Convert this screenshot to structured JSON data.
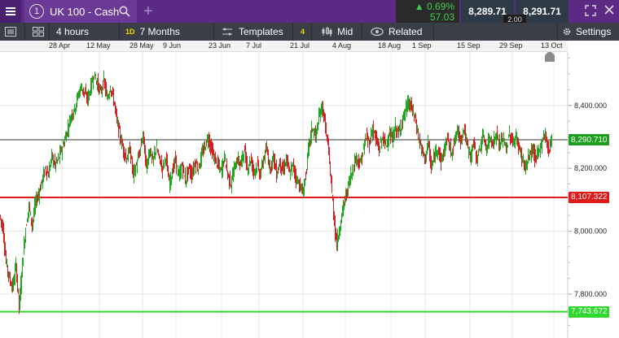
{
  "tab": {
    "number": "1",
    "title": "UK 100 - Cash"
  },
  "quote": {
    "change_pct": "0.69%",
    "change_abs": "57.03",
    "sell": "8,289.71",
    "buy": "8,291.71",
    "spread": "2.00",
    "up_color": "#3fd04a"
  },
  "toolbar": {
    "interval": "4 hours",
    "range_badge": "1D",
    "range": "7 Months",
    "templates": "Templates",
    "indicators_badge": "4",
    "price_type": "Mid",
    "related": "Related",
    "settings": "Settings"
  },
  "chart_data": {
    "type": "candlestick",
    "x_ticks": [
      "28 Apr",
      "12 May",
      "28 May",
      "9 Jun",
      "23 Jun",
      "7 Jul",
      "21 Jul",
      "4 Aug",
      "18 Aug",
      "1 Sep",
      "15 Sep",
      "29 Sep",
      "13 Oct"
    ],
    "y_ticks": [
      7800,
      8000,
      8200,
      8400
    ],
    "y_tick_labels": [
      "7,800.000",
      "8,000.000",
      "8,200.000",
      "8,400.000"
    ],
    "ylim": [
      7660,
      8570
    ],
    "up_color": "#1fa81f",
    "down_color": "#d42020",
    "path": [
      [
        0,
        8050
      ],
      [
        4,
        8010
      ],
      [
        8,
        7900
      ],
      [
        12,
        7850
      ],
      [
        16,
        7820
      ],
      [
        20,
        7890
      ],
      [
        24,
        7760
      ],
      [
        28,
        7900
      ],
      [
        32,
        8010
      ],
      [
        36,
        8080
      ],
      [
        40,
        8020
      ],
      [
        44,
        8090
      ],
      [
        48,
        8120
      ],
      [
        52,
        8160
      ],
      [
        56,
        8200
      ],
      [
        60,
        8180
      ],
      [
        64,
        8240
      ],
      [
        68,
        8210
      ],
      [
        72,
        8230
      ],
      [
        76,
        8260
      ],
      [
        80,
        8290
      ],
      [
        84,
        8330
      ],
      [
        88,
        8370
      ],
      [
        92,
        8390
      ],
      [
        96,
        8430
      ],
      [
        100,
        8460
      ],
      [
        104,
        8440
      ],
      [
        108,
        8420
      ],
      [
        112,
        8460
      ],
      [
        116,
        8500
      ],
      [
        120,
        8470
      ],
      [
        124,
        8440
      ],
      [
        128,
        8480
      ],
      [
        132,
        8420
      ],
      [
        136,
        8460
      ],
      [
        140,
        8420
      ],
      [
        144,
        8350
      ],
      [
        148,
        8300
      ],
      [
        152,
        8260
      ],
      [
        156,
        8230
      ],
      [
        160,
        8260
      ],
      [
        164,
        8180
      ],
      [
        168,
        8210
      ],
      [
        172,
        8250
      ],
      [
        176,
        8310
      ],
      [
        180,
        8200
      ],
      [
        184,
        8260
      ],
      [
        188,
        8220
      ],
      [
        192,
        8270
      ],
      [
        196,
        8230
      ],
      [
        200,
        8200
      ],
      [
        204,
        8240
      ],
      [
        208,
        8150
      ],
      [
        212,
        8190
      ],
      [
        216,
        8230
      ],
      [
        220,
        8170
      ],
      [
        224,
        8210
      ],
      [
        228,
        8160
      ],
      [
        232,
        8200
      ],
      [
        236,
        8180
      ],
      [
        240,
        8220
      ],
      [
        244,
        8200
      ],
      [
        248,
        8240
      ],
      [
        252,
        8270
      ],
      [
        256,
        8300
      ],
      [
        260,
        8260
      ],
      [
        264,
        8230
      ],
      [
        268,
        8210
      ],
      [
        272,
        8190
      ],
      [
        276,
        8240
      ],
      [
        280,
        8180
      ],
      [
        284,
        8150
      ],
      [
        288,
        8200
      ],
      [
        292,
        8230
      ],
      [
        296,
        8210
      ],
      [
        300,
        8260
      ],
      [
        304,
        8200
      ],
      [
        308,
        8230
      ],
      [
        312,
        8190
      ],
      [
        316,
        8210
      ],
      [
        320,
        8180
      ],
      [
        324,
        8230
      ],
      [
        328,
        8260
      ],
      [
        332,
        8200
      ],
      [
        336,
        8240
      ],
      [
        340,
        8180
      ],
      [
        344,
        8220
      ],
      [
        348,
        8190
      ],
      [
        352,
        8230
      ],
      [
        356,
        8180
      ],
      [
        360,
        8210
      ],
      [
        364,
        8170
      ],
      [
        368,
        8150
      ],
      [
        372,
        8120
      ],
      [
        376,
        8180
      ],
      [
        380,
        8280
      ],
      [
        384,
        8330
      ],
      [
        388,
        8300
      ],
      [
        392,
        8360
      ],
      [
        396,
        8400
      ],
      [
        400,
        8330
      ],
      [
        404,
        8250
      ],
      [
        408,
        8120
      ],
      [
        412,
        8000
      ],
      [
        414,
        7960
      ],
      [
        418,
        8020
      ],
      [
        422,
        8080
      ],
      [
        426,
        8120
      ],
      [
        430,
        8170
      ],
      [
        434,
        8200
      ],
      [
        438,
        8240
      ],
      [
        442,
        8210
      ],
      [
        446,
        8250
      ],
      [
        450,
        8300
      ],
      [
        454,
        8280
      ],
      [
        458,
        8330
      ],
      [
        462,
        8290
      ],
      [
        466,
        8260
      ],
      [
        470,
        8300
      ],
      [
        474,
        8270
      ],
      [
        478,
        8310
      ],
      [
        482,
        8290
      ],
      [
        486,
        8330
      ],
      [
        490,
        8310
      ],
      [
        494,
        8350
      ],
      [
        498,
        8380
      ],
      [
        502,
        8410
      ],
      [
        506,
        8390
      ],
      [
        510,
        8360
      ],
      [
        514,
        8300
      ],
      [
        518,
        8260
      ],
      [
        522,
        8230
      ],
      [
        526,
        8280
      ],
      [
        530,
        8200
      ],
      [
        534,
        8240
      ],
      [
        538,
        8270
      ],
      [
        542,
        8220
      ],
      [
        546,
        8260
      ],
      [
        550,
        8300
      ],
      [
        554,
        8250
      ],
      [
        558,
        8280
      ],
      [
        562,
        8320
      ],
      [
        566,
        8290
      ],
      [
        570,
        8330
      ],
      [
        574,
        8270
      ],
      [
        578,
        8240
      ],
      [
        582,
        8280
      ],
      [
        586,
        8230
      ],
      [
        590,
        8270
      ],
      [
        594,
        8300
      ],
      [
        598,
        8260
      ],
      [
        602,
        8300
      ],
      [
        606,
        8280
      ],
      [
        610,
        8310
      ],
      [
        614,
        8270
      ],
      [
        618,
        8300
      ],
      [
        622,
        8260
      ],
      [
        626,
        8310
      ],
      [
        630,
        8280
      ],
      [
        634,
        8300
      ],
      [
        638,
        8260
      ],
      [
        642,
        8230
      ],
      [
        646,
        8200
      ],
      [
        650,
        8240
      ],
      [
        654,
        8260
      ],
      [
        658,
        8230
      ],
      [
        662,
        8250
      ],
      [
        666,
        8290
      ],
      [
        670,
        8310
      ],
      [
        674,
        8250
      ],
      [
        677,
        8291
      ]
    ],
    "horizontal_lines": [
      {
        "value": 8290.71,
        "label": "8,290.710",
        "color": "#1e9e1e",
        "line_color": "#333333"
      },
      {
        "value": 8107.322,
        "label": "8,107.322",
        "color": "#e01818",
        "line_color": "#e01818"
      },
      {
        "value": 7743.672,
        "label": "7,743.672",
        "color": "#2fd82f",
        "line_color": "#2fd82f"
      }
    ]
  }
}
